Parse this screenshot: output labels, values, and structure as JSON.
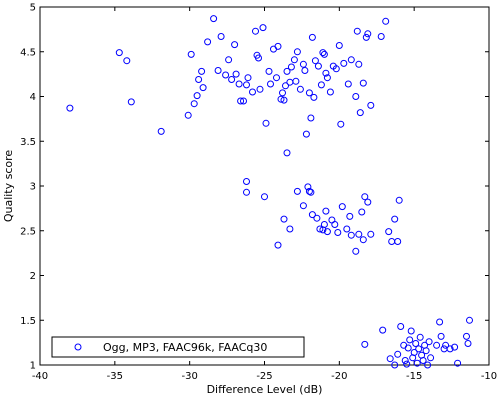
{
  "chart_data": {
    "type": "scatter",
    "title": "",
    "xlabel": "Difference Level (dB)",
    "ylabel": "Quality score",
    "xlim": [
      -40,
      -10
    ],
    "ylim": [
      1,
      5
    ],
    "xticks": [
      -40,
      -35,
      -30,
      -25,
      -20,
      -15,
      -10
    ],
    "yticks": [
      1,
      1.5,
      2,
      2.5,
      3,
      3.5,
      4,
      4.5,
      5
    ],
    "xtick_labels": [
      "-40",
      "-35",
      "-30",
      "-25",
      "-20",
      "-15",
      "-10"
    ],
    "ytick_labels": [
      "1",
      "1.5",
      "2",
      "2.5",
      "3",
      "3.5",
      "4",
      "4.5",
      "5"
    ],
    "grid": false,
    "legend_position": "bottom-left",
    "marker": "circle-open",
    "colors": {
      "marker": "#0000ff",
      "axis": "#000000",
      "background": "#ffffff"
    },
    "series": [
      {
        "name": "Ogg, MP3, FAAC96k, FAACq30",
        "points": [
          [
            -38.0,
            3.87
          ],
          [
            -34.7,
            4.49
          ],
          [
            -34.2,
            4.4
          ],
          [
            -33.9,
            3.94
          ],
          [
            -31.9,
            3.61
          ],
          [
            -30.1,
            3.79
          ],
          [
            -29.9,
            4.47
          ],
          [
            -29.7,
            3.92
          ],
          [
            -29.5,
            4.01
          ],
          [
            -29.4,
            4.19
          ],
          [
            -29.2,
            4.28
          ],
          [
            -29.1,
            4.1
          ],
          [
            -28.8,
            4.61
          ],
          [
            -28.4,
            4.87
          ],
          [
            -28.1,
            4.29
          ],
          [
            -27.9,
            4.67
          ],
          [
            -27.6,
            4.24
          ],
          [
            -27.4,
            4.41
          ],
          [
            -27.2,
            4.19
          ],
          [
            -27.0,
            4.58
          ],
          [
            -26.9,
            4.25
          ],
          [
            -26.7,
            4.14
          ],
          [
            -26.6,
            3.95
          ],
          [
            -26.4,
            3.95
          ],
          [
            -26.2,
            4.13
          ],
          [
            -26.1,
            4.21
          ],
          [
            -25.8,
            4.05
          ],
          [
            -25.6,
            4.73
          ],
          [
            -25.5,
            4.46
          ],
          [
            -25.4,
            4.43
          ],
          [
            -25.3,
            4.08
          ],
          [
            -25.1,
            4.77
          ],
          [
            -24.9,
            3.7
          ],
          [
            -24.7,
            4.28
          ],
          [
            -24.6,
            4.14
          ],
          [
            -24.4,
            4.53
          ],
          [
            -24.2,
            4.21
          ],
          [
            -24.1,
            4.56
          ],
          [
            -23.9,
            3.97
          ],
          [
            -23.8,
            4.04
          ],
          [
            -23.7,
            3.96
          ],
          [
            -23.6,
            4.12
          ],
          [
            -23.5,
            4.28
          ],
          [
            -23.3,
            4.16
          ],
          [
            -23.2,
            4.33
          ],
          [
            -23.0,
            4.41
          ],
          [
            -22.9,
            4.17
          ],
          [
            -22.8,
            4.5
          ],
          [
            -22.6,
            4.08
          ],
          [
            -22.4,
            4.36
          ],
          [
            -22.3,
            4.29
          ],
          [
            -22.2,
            3.58
          ],
          [
            -22.0,
            4.04
          ],
          [
            -21.9,
            3.76
          ],
          [
            -21.8,
            4.66
          ],
          [
            -21.7,
            3.99
          ],
          [
            -21.6,
            4.4
          ],
          [
            -21.4,
            4.34
          ],
          [
            -21.2,
            4.13
          ],
          [
            -21.1,
            4.49
          ],
          [
            -21.0,
            4.47
          ],
          [
            -20.9,
            4.26
          ],
          [
            -20.8,
            4.21
          ],
          [
            -20.6,
            4.05
          ],
          [
            -20.4,
            4.34
          ],
          [
            -20.2,
            4.31
          ],
          [
            -20.0,
            4.57
          ],
          [
            -19.9,
            3.69
          ],
          [
            -19.7,
            4.37
          ],
          [
            -19.4,
            4.14
          ],
          [
            -19.2,
            4.41
          ],
          [
            -18.9,
            4.0
          ],
          [
            -18.8,
            4.73
          ],
          [
            -18.7,
            4.36
          ],
          [
            -18.6,
            3.82
          ],
          [
            -18.4,
            4.15
          ],
          [
            -18.2,
            4.66
          ],
          [
            -18.1,
            4.7
          ],
          [
            -17.9,
            3.9
          ],
          [
            -17.2,
            4.67
          ],
          [
            -16.9,
            4.84
          ],
          [
            -23.5,
            3.37
          ],
          [
            -26.2,
            3.05
          ],
          [
            -26.2,
            2.93
          ],
          [
            -25.0,
            2.88
          ],
          [
            -24.1,
            2.34
          ],
          [
            -23.7,
            2.63
          ],
          [
            -23.3,
            2.52
          ],
          [
            -22.8,
            2.94
          ],
          [
            -22.4,
            2.78
          ],
          [
            -22.1,
            2.99
          ],
          [
            -22.0,
            2.94
          ],
          [
            -21.9,
            2.93
          ],
          [
            -21.8,
            2.68
          ],
          [
            -21.5,
            2.64
          ],
          [
            -21.3,
            2.52
          ],
          [
            -21.1,
            2.51
          ],
          [
            -21.0,
            2.57
          ],
          [
            -20.9,
            2.72
          ],
          [
            -20.8,
            2.49
          ],
          [
            -20.5,
            2.62
          ],
          [
            -20.3,
            2.57
          ],
          [
            -20.1,
            2.48
          ],
          [
            -19.8,
            2.77
          ],
          [
            -19.5,
            2.52
          ],
          [
            -19.3,
            2.66
          ],
          [
            -19.2,
            2.45
          ],
          [
            -18.9,
            2.27
          ],
          [
            -18.7,
            2.46
          ],
          [
            -18.5,
            2.71
          ],
          [
            -18.4,
            2.4
          ],
          [
            -18.3,
            2.88
          ],
          [
            -18.1,
            2.82
          ],
          [
            -17.9,
            2.46
          ],
          [
            -16.7,
            2.49
          ],
          [
            -16.5,
            2.38
          ],
          [
            -16.3,
            2.63
          ],
          [
            -16.1,
            2.38
          ],
          [
            -16.0,
            2.84
          ],
          [
            -18.3,
            1.23
          ],
          [
            -17.1,
            1.39
          ],
          [
            -16.6,
            1.07
          ],
          [
            -16.3,
            1.0
          ],
          [
            -16.1,
            1.12
          ],
          [
            -15.9,
            1.43
          ],
          [
            -15.7,
            1.22
          ],
          [
            -15.6,
            1.05
          ],
          [
            -15.5,
            1.01
          ],
          [
            -15.4,
            1.19
          ],
          [
            -15.3,
            1.28
          ],
          [
            -15.2,
            1.38
          ],
          [
            -15.1,
            1.08
          ],
          [
            -15.0,
            1.14
          ],
          [
            -14.9,
            1.24
          ],
          [
            -14.8,
            1.02
          ],
          [
            -14.7,
            1.18
          ],
          [
            -14.6,
            1.31
          ],
          [
            -14.5,
            1.11
          ],
          [
            -14.4,
            1.05
          ],
          [
            -14.3,
            1.22
          ],
          [
            -14.2,
            1.16
          ],
          [
            -14.1,
            1.0
          ],
          [
            -14.0,
            1.26
          ],
          [
            -13.9,
            1.08
          ],
          [
            -13.5,
            1.22
          ],
          [
            -13.3,
            1.48
          ],
          [
            -13.2,
            1.32
          ],
          [
            -13.0,
            1.18
          ],
          [
            -12.9,
            1.22
          ],
          [
            -12.6,
            1.18
          ],
          [
            -12.3,
            1.2
          ],
          [
            -12.1,
            1.02
          ],
          [
            -11.5,
            1.32
          ],
          [
            -11.4,
            1.24
          ],
          [
            -11.3,
            1.5
          ]
        ]
      }
    ]
  }
}
